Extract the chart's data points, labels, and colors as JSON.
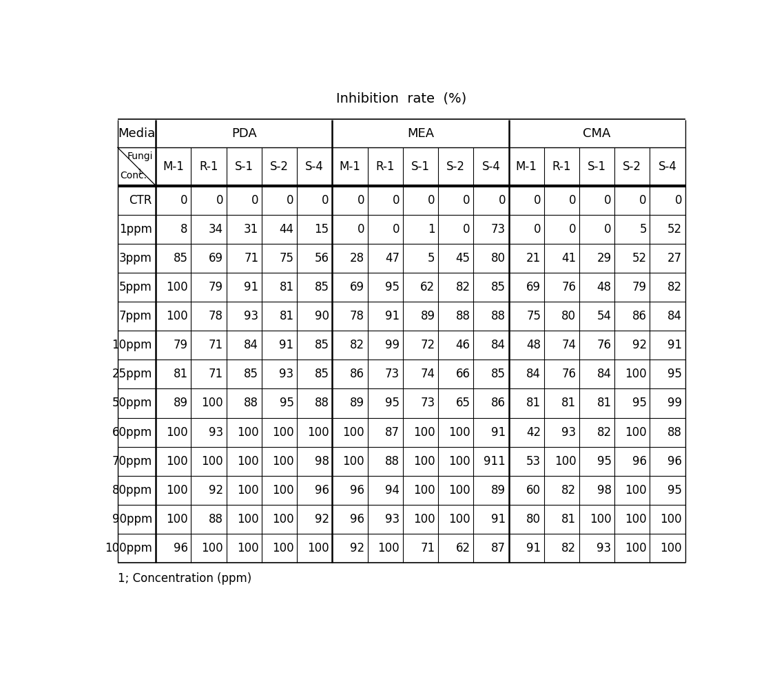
{
  "title": "Inhibition  rate  (%)",
  "media_groups": [
    "PDA",
    "MEA",
    "CMA"
  ],
  "fungi_cols": [
    "M-1",
    "R-1",
    "S-1",
    "S-2",
    "S-4"
  ],
  "conc_rows": [
    "CTR",
    "1ppm",
    "3ppm",
    "5ppm",
    "7ppm",
    "10ppm",
    "25ppm",
    "50ppm",
    "60ppm",
    "70ppm",
    "80ppm",
    "90ppm",
    "100ppm"
  ],
  "table_data": [
    [
      0,
      0,
      0,
      0,
      0,
      0,
      0,
      0,
      0,
      0,
      0,
      0,
      0,
      0,
      0
    ],
    [
      8,
      34,
      31,
      44,
      15,
      0,
      0,
      1,
      0,
      73,
      0,
      0,
      0,
      5,
      52
    ],
    [
      85,
      69,
      71,
      75,
      56,
      28,
      47,
      5,
      45,
      80,
      21,
      41,
      29,
      52,
      27
    ],
    [
      100,
      79,
      91,
      81,
      85,
      69,
      95,
      62,
      82,
      85,
      69,
      76,
      48,
      79,
      82
    ],
    [
      100,
      78,
      93,
      81,
      90,
      78,
      91,
      89,
      88,
      88,
      75,
      80,
      54,
      86,
      84
    ],
    [
      79,
      71,
      84,
      91,
      85,
      82,
      99,
      72,
      46,
      84,
      48,
      74,
      76,
      92,
      91
    ],
    [
      81,
      71,
      85,
      93,
      85,
      86,
      73,
      74,
      66,
      85,
      84,
      76,
      84,
      100,
      95
    ],
    [
      89,
      100,
      88,
      95,
      88,
      89,
      95,
      73,
      65,
      86,
      81,
      81,
      81,
      95,
      99
    ],
    [
      100,
      93,
      100,
      100,
      100,
      100,
      87,
      100,
      100,
      91,
      42,
      93,
      82,
      100,
      88
    ],
    [
      100,
      100,
      100,
      100,
      98,
      100,
      88,
      100,
      100,
      911,
      53,
      100,
      95,
      96,
      96
    ],
    [
      100,
      92,
      100,
      100,
      96,
      96,
      94,
      100,
      100,
      89,
      60,
      82,
      98,
      100,
      95
    ],
    [
      100,
      88,
      100,
      100,
      92,
      96,
      93,
      100,
      100,
      91,
      80,
      81,
      100,
      100,
      100
    ],
    [
      96,
      100,
      100,
      100,
      100,
      92,
      100,
      71,
      62,
      87,
      91,
      82,
      93,
      100,
      100
    ]
  ],
  "footnote": "1; Concentration (ppm)",
  "bg_color": "#ffffff",
  "text_color": "#000000",
  "title_fontsize": 14,
  "header_fontsize": 13,
  "cell_fontsize": 12,
  "footnote_fontsize": 12
}
